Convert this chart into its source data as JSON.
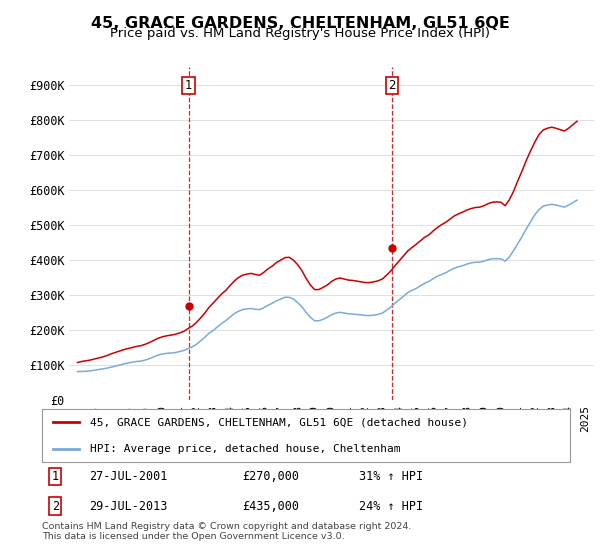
{
  "title": "45, GRACE GARDENS, CHELTENHAM, GL51 6QE",
  "subtitle": "Price paid vs. HM Land Registry's House Price Index (HPI)",
  "ylim": [
    0,
    950000
  ],
  "yticks": [
    0,
    100000,
    200000,
    300000,
    400000,
    500000,
    600000,
    700000,
    800000,
    900000
  ],
  "ytick_labels": [
    "£0",
    "£100K",
    "£200K",
    "£300K",
    "£400K",
    "£500K",
    "£600K",
    "£700K",
    "£800K",
    "£900K"
  ],
  "xlim_start": 1994.5,
  "xlim_end": 2025.5,
  "purchase1_date": 2001.56,
  "purchase1_price": 270000,
  "purchase1_label": "1",
  "purchase2_date": 2013.56,
  "purchase2_price": 435000,
  "purchase2_label": "2",
  "legend_line1": "45, GRACE GARDENS, CHELTENHAM, GL51 6QE (detached house)",
  "legend_line2": "HPI: Average price, detached house, Cheltenham",
  "footnote1": "Contains HM Land Registry data © Crown copyright and database right 2024.",
  "footnote2": "This data is licensed under the Open Government Licence v3.0.",
  "red_color": "#cc0000",
  "blue_color": "#7aaadd",
  "grid_color": "#e0e0e0",
  "hpi_data_years": [
    1995.0,
    1995.25,
    1995.5,
    1995.75,
    1996.0,
    1996.25,
    1996.5,
    1996.75,
    1997.0,
    1997.25,
    1997.5,
    1997.75,
    1998.0,
    1998.25,
    1998.5,
    1998.75,
    1999.0,
    1999.25,
    1999.5,
    1999.75,
    2000.0,
    2000.25,
    2000.5,
    2000.75,
    2001.0,
    2001.25,
    2001.5,
    2001.75,
    2002.0,
    2002.25,
    2002.5,
    2002.75,
    2003.0,
    2003.25,
    2003.5,
    2003.75,
    2004.0,
    2004.25,
    2004.5,
    2004.75,
    2005.0,
    2005.25,
    2005.5,
    2005.75,
    2006.0,
    2006.25,
    2006.5,
    2006.75,
    2007.0,
    2007.25,
    2007.5,
    2007.75,
    2008.0,
    2008.25,
    2008.5,
    2008.75,
    2009.0,
    2009.25,
    2009.5,
    2009.75,
    2010.0,
    2010.25,
    2010.5,
    2010.75,
    2011.0,
    2011.25,
    2011.5,
    2011.75,
    2012.0,
    2012.25,
    2012.5,
    2012.75,
    2013.0,
    2013.25,
    2013.5,
    2013.75,
    2014.0,
    2014.25,
    2014.5,
    2014.75,
    2015.0,
    2015.25,
    2015.5,
    2015.75,
    2016.0,
    2016.25,
    2016.5,
    2016.75,
    2017.0,
    2017.25,
    2017.5,
    2017.75,
    2018.0,
    2018.25,
    2018.5,
    2018.75,
    2019.0,
    2019.25,
    2019.5,
    2019.75,
    2020.0,
    2020.25,
    2020.5,
    2020.75,
    2021.0,
    2021.25,
    2021.5,
    2021.75,
    2022.0,
    2022.25,
    2022.5,
    2022.75,
    2023.0,
    2023.25,
    2023.5,
    2023.75,
    2024.0,
    2024.25,
    2024.5
  ],
  "hpi_data_values": [
    82000,
    82500,
    83000,
    84000,
    86000,
    88000,
    90000,
    92000,
    95000,
    98000,
    101000,
    104000,
    107000,
    109000,
    111000,
    112000,
    115000,
    119000,
    124000,
    129000,
    132000,
    134000,
    135000,
    136000,
    139000,
    142000,
    147000,
    152000,
    159000,
    169000,
    179000,
    191000,
    199000,
    209000,
    219000,
    227000,
    237000,
    247000,
    254000,
    259000,
    261000,
    262000,
    260000,
    259000,
    264000,
    271000,
    277000,
    284000,
    289000,
    294000,
    294000,
    289000,
    279000,
    267000,
    251000,
    237000,
    227000,
    227000,
    231000,
    237000,
    244000,
    249000,
    251000,
    249000,
    247000,
    246000,
    245000,
    244000,
    242000,
    242000,
    243000,
    245000,
    249000,
    257000,
    266000,
    277000,
    287000,
    297000,
    307000,
    314000,
    319000,
    327000,
    334000,
    339000,
    347000,
    354000,
    359000,
    364000,
    371000,
    377000,
    381000,
    384000,
    389000,
    392000,
    394000,
    394000,
    397000,
    401000,
    404000,
    404000,
    404000,
    397000,
    409000,
    427000,
    447000,
    467000,
    489000,
    509000,
    529000,
    544000,
    554000,
    557000,
    559000,
    557000,
    554000,
    551000,
    557000,
    564000,
    571000
  ],
  "pp_data_years": [
    1995.0,
    1995.25,
    1995.5,
    1995.75,
    1996.0,
    1996.25,
    1996.5,
    1996.75,
    1997.0,
    1997.25,
    1997.5,
    1997.75,
    1998.0,
    1998.25,
    1998.5,
    1998.75,
    1999.0,
    1999.25,
    1999.5,
    1999.75,
    2000.0,
    2000.25,
    2000.5,
    2000.75,
    2001.0,
    2001.25,
    2001.5,
    2001.75,
    2002.0,
    2002.25,
    2002.5,
    2002.75,
    2003.0,
    2003.25,
    2003.5,
    2003.75,
    2004.0,
    2004.25,
    2004.5,
    2004.75,
    2005.0,
    2005.25,
    2005.5,
    2005.75,
    2006.0,
    2006.25,
    2006.5,
    2006.75,
    2007.0,
    2007.25,
    2007.5,
    2007.75,
    2008.0,
    2008.25,
    2008.5,
    2008.75,
    2009.0,
    2009.25,
    2009.5,
    2009.75,
    2010.0,
    2010.25,
    2010.5,
    2010.75,
    2011.0,
    2011.25,
    2011.5,
    2011.75,
    2012.0,
    2012.25,
    2012.5,
    2012.75,
    2013.0,
    2013.25,
    2013.5,
    2013.75,
    2014.0,
    2014.25,
    2014.5,
    2014.75,
    2015.0,
    2015.25,
    2015.5,
    2015.75,
    2016.0,
    2016.25,
    2016.5,
    2016.75,
    2017.0,
    2017.25,
    2017.5,
    2017.75,
    2018.0,
    2018.25,
    2018.5,
    2018.75,
    2019.0,
    2019.25,
    2019.5,
    2019.75,
    2020.0,
    2020.25,
    2020.5,
    2020.75,
    2021.0,
    2021.25,
    2021.5,
    2021.75,
    2022.0,
    2022.25,
    2022.5,
    2022.75,
    2023.0,
    2023.25,
    2023.5,
    2023.75,
    2024.0,
    2024.25,
    2024.5
  ],
  "pp_data_values": [
    108000,
    111000,
    113000,
    115000,
    118000,
    121000,
    124000,
    128000,
    133000,
    137000,
    141000,
    145000,
    148000,
    151000,
    154000,
    156000,
    160000,
    165000,
    171000,
    177000,
    181000,
    184000,
    186000,
    188000,
    192000,
    196000,
    204000,
    211000,
    221000,
    234000,
    248000,
    264000,
    277000,
    290000,
    303000,
    313000,
    327000,
    340000,
    350000,
    357000,
    360000,
    362000,
    359000,
    357000,
    365000,
    375000,
    383000,
    393000,
    400000,
    407000,
    408000,
    400000,
    387000,
    370000,
    348000,
    329000,
    316000,
    316000,
    322000,
    329000,
    339000,
    346000,
    349000,
    346000,
    343000,
    342000,
    340000,
    338000,
    336000,
    336000,
    338000,
    341000,
    346000,
    357000,
    369000,
    384000,
    398000,
    412000,
    426000,
    436000,
    445000,
    455000,
    465000,
    472000,
    483000,
    493000,
    501000,
    508000,
    517000,
    526000,
    532000,
    537000,
    543000,
    547000,
    550000,
    551000,
    555000,
    561000,
    565000,
    566000,
    565000,
    555000,
    572000,
    596000,
    626000,
    654000,
    684000,
    711000,
    736000,
    758000,
    771000,
    776000,
    779000,
    776000,
    772000,
    768000,
    776000,
    786000,
    796000
  ]
}
